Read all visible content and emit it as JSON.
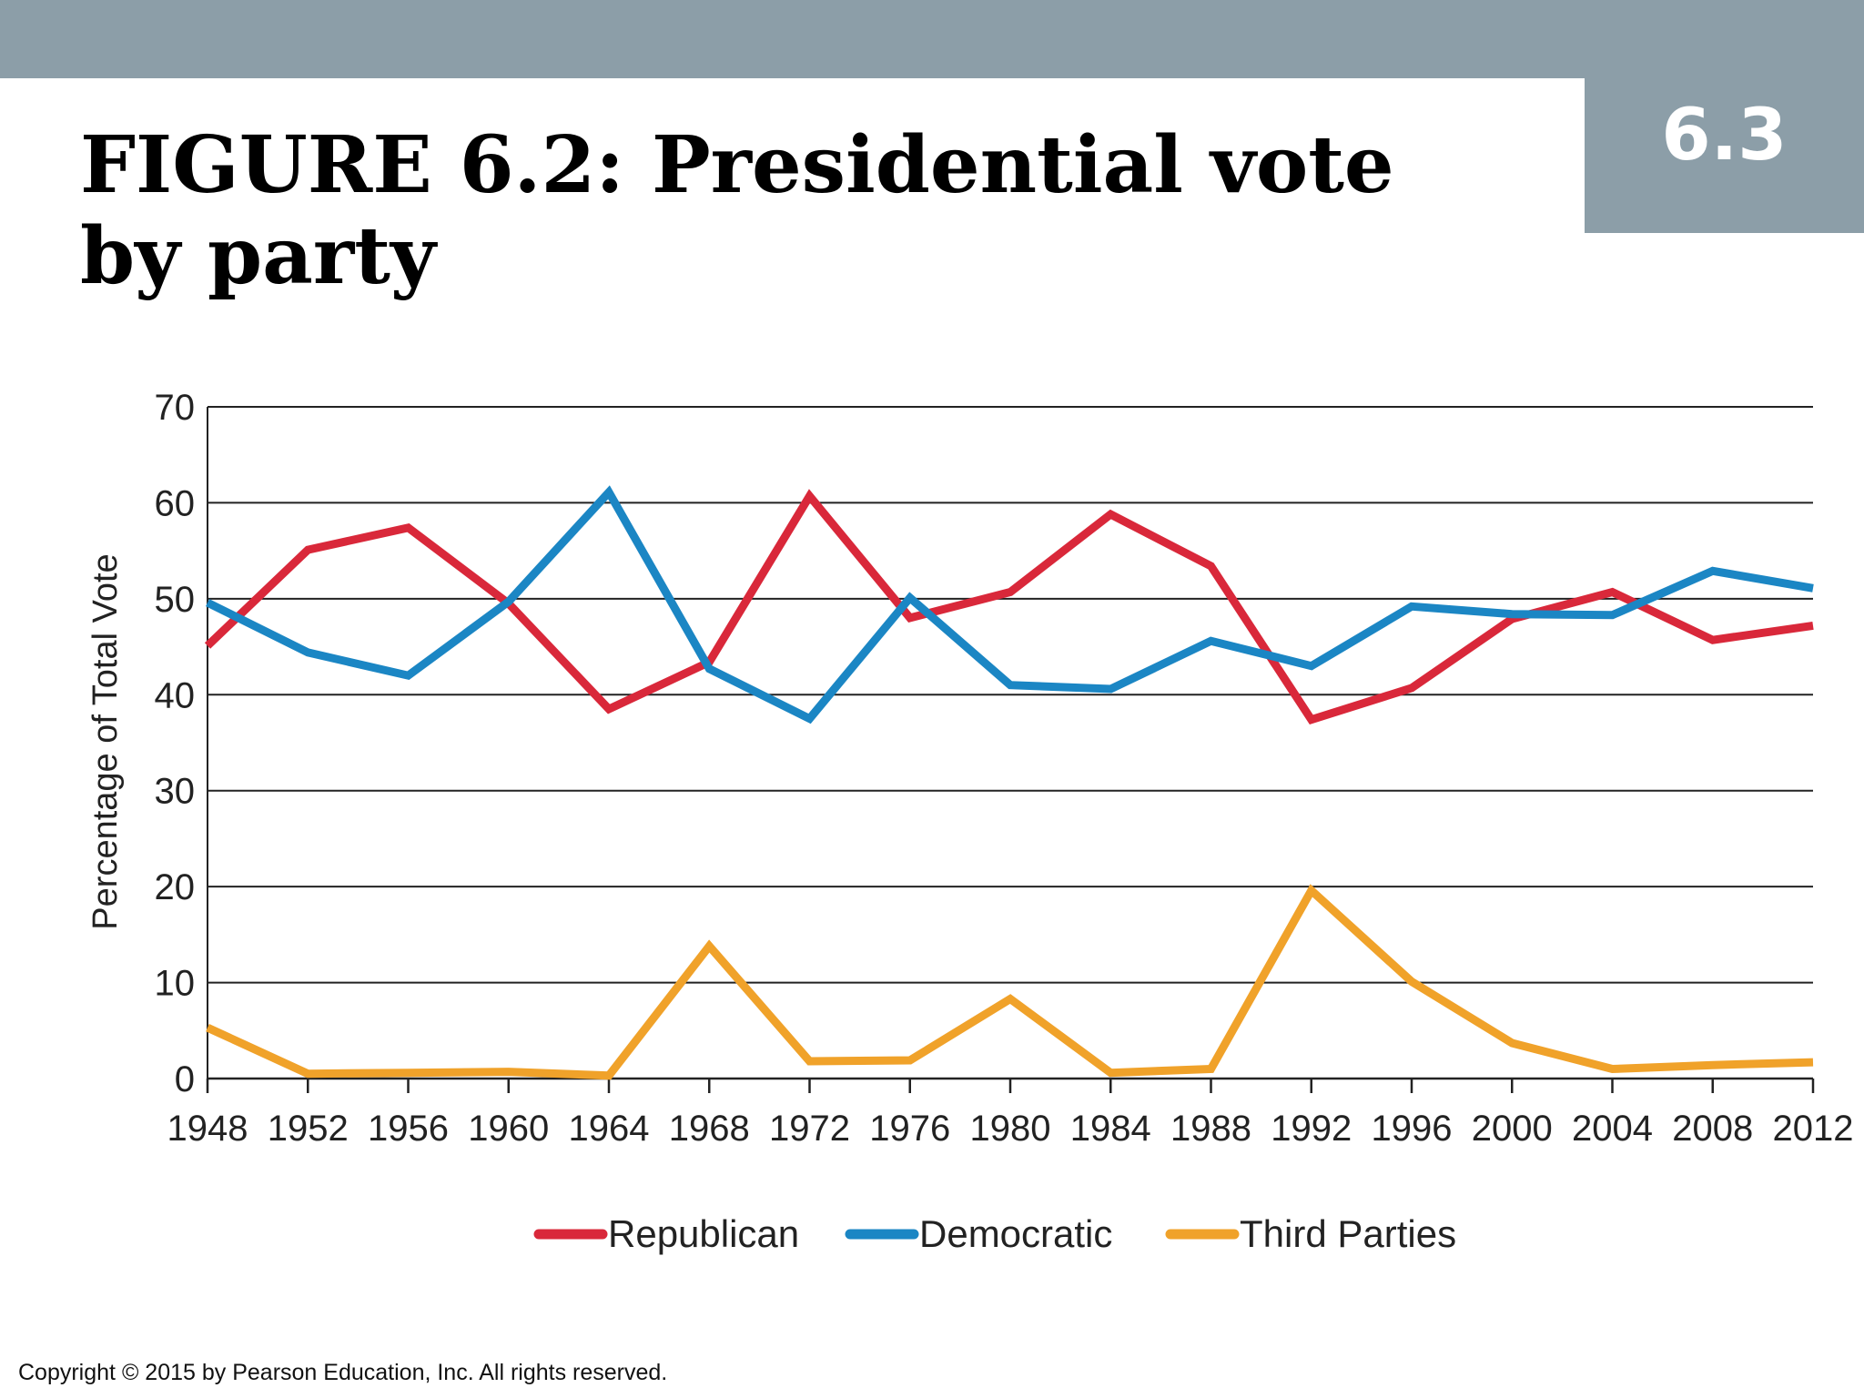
{
  "header": {
    "section_number": "6.3",
    "title": "FIGURE 6.2: Presidential vote by party"
  },
  "footer": {
    "copyright": "Copyright © 2015 by Pearson Education, Inc. All rights reserved."
  },
  "colors": {
    "header_bar": "#8c9ea8",
    "republican": "#d9283a",
    "democratic": "#1b86c4",
    "third_parties": "#f0a22a"
  },
  "chart_data": {
    "type": "line",
    "title": "",
    "xlabel": "",
    "ylabel": "Percentage of Total Vote",
    "x": [
      1948,
      1952,
      1956,
      1960,
      1964,
      1968,
      1972,
      1976,
      1980,
      1984,
      1988,
      1992,
      1996,
      2000,
      2004,
      2008,
      2012
    ],
    "x_tick_labels": [
      "1948",
      "1952",
      "1956",
      "1960",
      "1964",
      "1968",
      "1972",
      "1976",
      "1980",
      "1984",
      "1988",
      "1992",
      "1996",
      "2000",
      "2004",
      "2008",
      "2012"
    ],
    "y_ticks": [
      0,
      10,
      20,
      30,
      40,
      50,
      60,
      70
    ],
    "ylim": [
      0,
      70
    ],
    "grid": "horizontal",
    "legend_position": "bottom-center",
    "series": [
      {
        "name": "Republican",
        "color": "#d9283a",
        "values": [
          45.1,
          55.1,
          57.4,
          49.5,
          38.5,
          43.4,
          60.7,
          48.0,
          50.7,
          58.8,
          53.4,
          37.4,
          40.7,
          47.9,
          50.7,
          45.7,
          47.2
        ]
      },
      {
        "name": "Democratic",
        "color": "#1b86c4",
        "values": [
          49.6,
          44.4,
          42.0,
          49.7,
          61.1,
          42.7,
          37.5,
          50.1,
          41.0,
          40.6,
          45.6,
          43.0,
          49.2,
          48.4,
          48.3,
          52.9,
          51.1
        ]
      },
      {
        "name": "Third Parties",
        "color": "#f0a22a",
        "values": [
          5.3,
          0.5,
          0.6,
          0.7,
          0.3,
          13.8,
          1.8,
          1.9,
          8.3,
          0.6,
          1.0,
          19.6,
          10.1,
          3.7,
          1.0,
          1.4,
          1.7
        ]
      }
    ]
  }
}
